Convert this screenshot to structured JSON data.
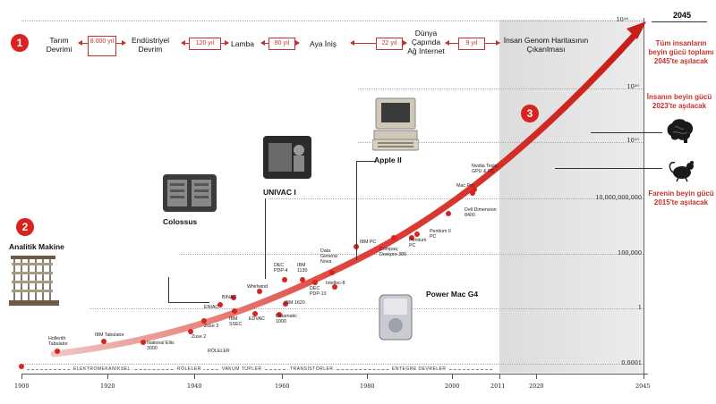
{
  "badges": [
    "1",
    "2",
    "3"
  ],
  "timeline": {
    "events": [
      "Tarım Devrimi",
      "Endüstriyel Devrim",
      "Lamba",
      "Aya İniş",
      "Dünya Çapında Ağ Internet",
      "İnsan Genom Haritasının Çıkarılması"
    ],
    "gaps": [
      "8.000 yıl",
      "120 yıl",
      "90 yıl",
      "22 yıl",
      "9 yıl"
    ]
  },
  "y_axis": {
    "labels": [
      "10²⁶",
      "10²⁰",
      "10¹⁵",
      "10,000,000,000",
      "100,000",
      "1",
      "0.0001"
    ]
  },
  "x_axis": {
    "labels": [
      "1900",
      "1920",
      "1940",
      "1960",
      "1980",
      "2000",
      "2011",
      "2020",
      "2045"
    ]
  },
  "eras": [
    "ELEKTROMEKANİKSEL",
    "RÖLELER",
    "VAKUM TÜPLER",
    "TRANSİSTÖRLER",
    "ENTEGRE DEVRELER"
  ],
  "points": [
    {
      "label": "Hollerith Tabulator"
    },
    {
      "label": "IBM Tabulator"
    },
    {
      "label": "National Ellis 3000"
    },
    {
      "label": "Zuse 2"
    },
    {
      "label": "Zuse 3"
    },
    {
      "label": "RÖLELER"
    },
    {
      "label": "ENIAC"
    },
    {
      "label": "BINAC"
    },
    {
      "label": "IBM SSEC"
    },
    {
      "label": "EDVAC"
    },
    {
      "label": "Whirlwind"
    },
    {
      "label": "Datamatic 1000"
    },
    {
      "label": "IBM 1620"
    },
    {
      "label": "DEC PDP-4"
    },
    {
      "label": "IBM 1130"
    },
    {
      "label": "DEC PDP-10"
    },
    {
      "label": "Data General Nova"
    },
    {
      "label": "Intellec-8"
    },
    {
      "label": "IBM PC"
    },
    {
      "label": "Compaq Deskpro 386"
    },
    {
      "label": "Pentium PC"
    },
    {
      "label": "Pentium II PC"
    },
    {
      "label": "Dell Dimension 8400"
    },
    {
      "label": "Mac Pro"
    },
    {
      "label": "Nvidia Tesla GPU & PC"
    }
  ],
  "machines": {
    "analitik": "Analitik Makine",
    "colossus": "Colossus",
    "univac": "UNIVAC I",
    "apple": "Apple II",
    "powermac": "Power Mac G4"
  },
  "callouts": {
    "year_2045": "2045",
    "all_humans": "Tüm insanların beyin gücü toplamı 2045'te aşılacak",
    "human_brain": "İnsanın beyin gücü 2023'te aşılacak",
    "mouse_brain": "Farenin beyin gücü 2015'te aşılacak"
  },
  "colors": {
    "accent": "#d8231f",
    "projection": "#e6e6e6"
  }
}
